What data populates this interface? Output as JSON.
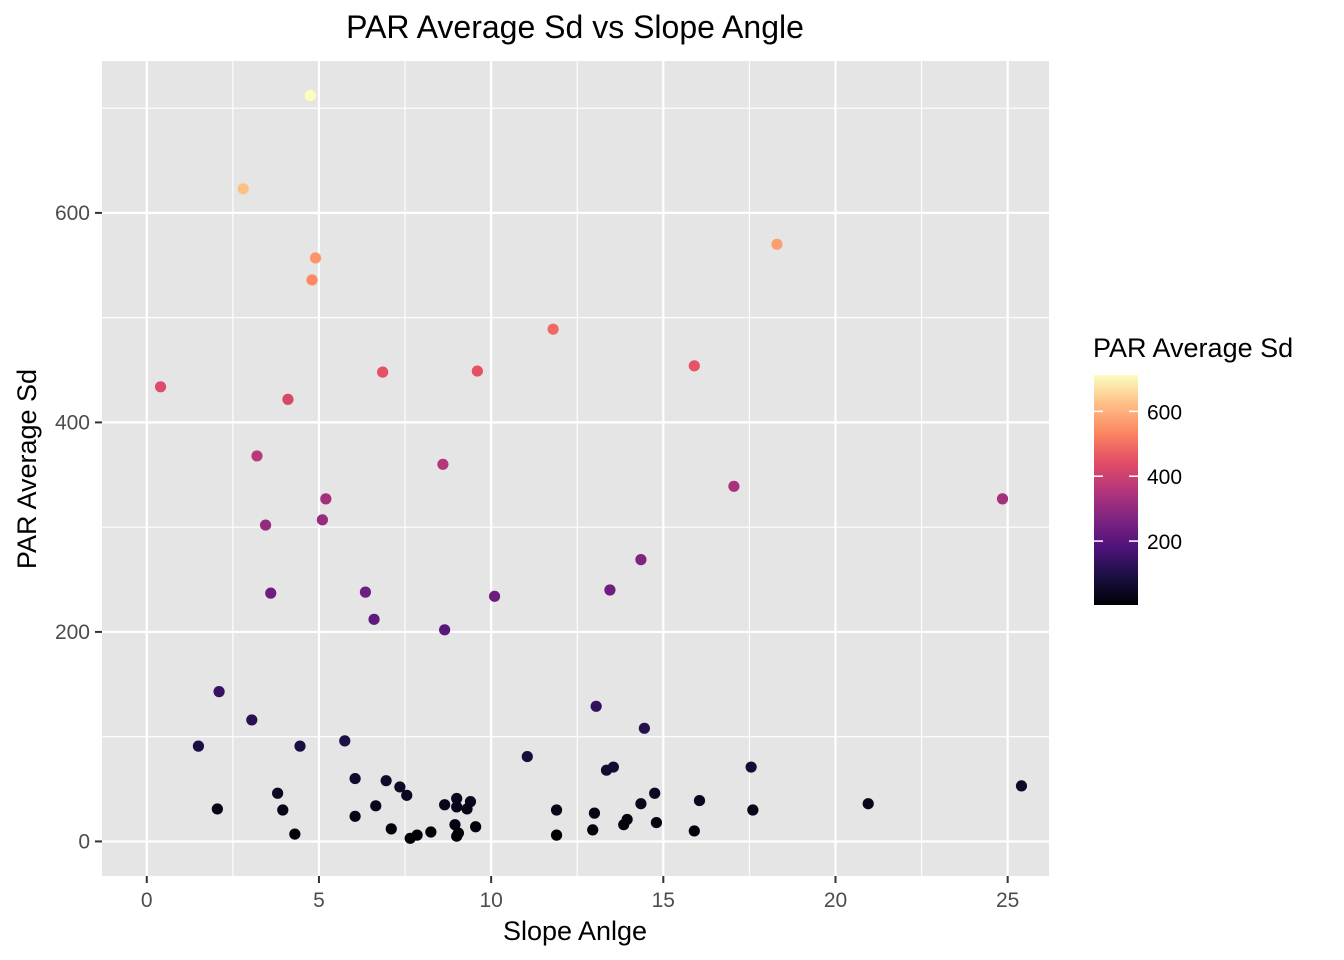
{
  "chart_data": {
    "type": "scatter",
    "title": "PAR Average Sd vs Slope Angle",
    "xlabel": "Slope Anlge",
    "ylabel": "PAR Average Sd",
    "xlim": [
      -1.3,
      26.2
    ],
    "ylim": [
      -33,
      745
    ],
    "x_ticks": [
      0,
      5,
      10,
      15,
      20,
      25
    ],
    "x_tick_labels": [
      "0",
      "5",
      "10",
      "15",
      "20",
      "25"
    ],
    "y_ticks": [
      0,
      200,
      400,
      600
    ],
    "y_tick_labels": [
      "0",
      "200",
      "400",
      "600"
    ],
    "grid": true,
    "panel_background": "#e5e5e5",
    "grid_color": "#ffffff",
    "legend": {
      "title": "PAR Average Sd",
      "placement": "right",
      "type": "colorbar",
      "palette": "magma",
      "range": [
        3,
        712
      ],
      "breaks": [
        200,
        400,
        600
      ],
      "break_labels": [
        "200",
        "400",
        "600"
      ]
    },
    "points": [
      {
        "x": 4.75,
        "y": 712
      },
      {
        "x": 2.8,
        "y": 623
      },
      {
        "x": 4.9,
        "y": 557
      },
      {
        "x": 4.8,
        "y": 536
      },
      {
        "x": 18.3,
        "y": 570
      },
      {
        "x": 11.8,
        "y": 489
      },
      {
        "x": 0.4,
        "y": 434
      },
      {
        "x": 15.9,
        "y": 454
      },
      {
        "x": 6.85,
        "y": 448
      },
      {
        "x": 9.6,
        "y": 449
      },
      {
        "x": 4.1,
        "y": 422
      },
      {
        "x": 3.2,
        "y": 368
      },
      {
        "x": 8.6,
        "y": 360
      },
      {
        "x": 17.05,
        "y": 339
      },
      {
        "x": 24.85,
        "y": 327
      },
      {
        "x": 5.2,
        "y": 327
      },
      {
        "x": 5.1,
        "y": 307
      },
      {
        "x": 3.45,
        "y": 302
      },
      {
        "x": 14.35,
        "y": 269
      },
      {
        "x": 13.45,
        "y": 240
      },
      {
        "x": 6.35,
        "y": 238
      },
      {
        "x": 3.6,
        "y": 237
      },
      {
        "x": 10.1,
        "y": 234
      },
      {
        "x": 6.6,
        "y": 212
      },
      {
        "x": 8.65,
        "y": 202
      },
      {
        "x": 2.1,
        "y": 143
      },
      {
        "x": 13.05,
        "y": 129
      },
      {
        "x": 3.05,
        "y": 116
      },
      {
        "x": 14.45,
        "y": 108
      },
      {
        "x": 5.75,
        "y": 96
      },
      {
        "x": 4.45,
        "y": 91
      },
      {
        "x": 1.5,
        "y": 91
      },
      {
        "x": 11.05,
        "y": 81
      },
      {
        "x": 17.55,
        "y": 71
      },
      {
        "x": 13.55,
        "y": 71
      },
      {
        "x": 13.35,
        "y": 68
      },
      {
        "x": 6.05,
        "y": 60
      },
      {
        "x": 6.95,
        "y": 58
      },
      {
        "x": 25.4,
        "y": 53
      },
      {
        "x": 7.35,
        "y": 52
      },
      {
        "x": 3.8,
        "y": 46
      },
      {
        "x": 14.75,
        "y": 46
      },
      {
        "x": 7.55,
        "y": 44
      },
      {
        "x": 9.0,
        "y": 41
      },
      {
        "x": 16.05,
        "y": 39
      },
      {
        "x": 9.4,
        "y": 38
      },
      {
        "x": 20.95,
        "y": 36
      },
      {
        "x": 14.35,
        "y": 36
      },
      {
        "x": 8.65,
        "y": 35
      },
      {
        "x": 6.65,
        "y": 34
      },
      {
        "x": 9.0,
        "y": 33
      },
      {
        "x": 2.05,
        "y": 31
      },
      {
        "x": 9.3,
        "y": 31
      },
      {
        "x": 17.6,
        "y": 30
      },
      {
        "x": 11.9,
        "y": 30
      },
      {
        "x": 3.95,
        "y": 30
      },
      {
        "x": 13.0,
        "y": 27
      },
      {
        "x": 6.05,
        "y": 24
      },
      {
        "x": 13.95,
        "y": 21
      },
      {
        "x": 14.8,
        "y": 18
      },
      {
        "x": 13.85,
        "y": 16
      },
      {
        "x": 8.95,
        "y": 16
      },
      {
        "x": 9.55,
        "y": 14
      },
      {
        "x": 7.1,
        "y": 12
      },
      {
        "x": 12.95,
        "y": 11
      },
      {
        "x": 15.9,
        "y": 10
      },
      {
        "x": 8.25,
        "y": 9
      },
      {
        "x": 9.05,
        "y": 8
      },
      {
        "x": 4.3,
        "y": 7
      },
      {
        "x": 7.85,
        "y": 6
      },
      {
        "x": 11.9,
        "y": 6
      },
      {
        "x": 9.0,
        "y": 5
      },
      {
        "x": 7.65,
        "y": 3
      }
    ]
  }
}
